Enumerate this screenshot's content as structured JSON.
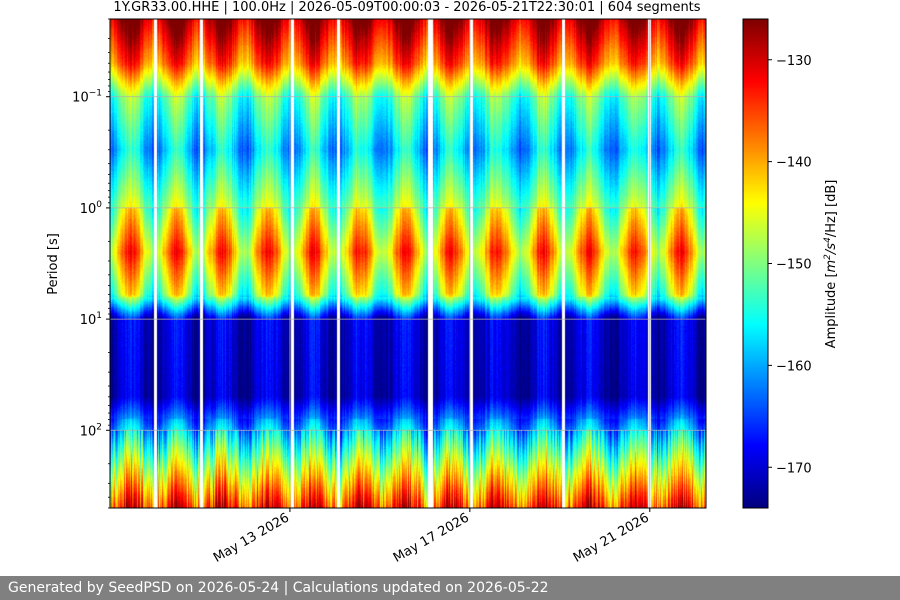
{
  "chart_data": {
    "type": "heatmap",
    "title": "1Y.GR33.00.HHE | 100.0Hz | 2026-05-09T00:00:03 - 2026-05-21T22:30:01 | 604 segments",
    "ylabel": "Period [s]",
    "y_scale": "log",
    "y_inverted": true,
    "ylim": [
      0.02,
      500
    ],
    "y_ticks": [
      {
        "value": 0.1,
        "mantissa": "10",
        "exp": "−1"
      },
      {
        "value": 1,
        "mantissa": "10",
        "exp": "0"
      },
      {
        "value": 10,
        "mantissa": "10",
        "exp": "1"
      },
      {
        "value": 100,
        "mantissa": "10",
        "exp": "2"
      }
    ],
    "x_range": [
      "2026-05-09T00:00:03",
      "2026-05-22T06:00:00"
    ],
    "x_ticks": [
      {
        "date": "2026-05-13",
        "label": "May 13 2026"
      },
      {
        "date": "2026-05-17",
        "label": "May 17 2026"
      },
      {
        "date": "2026-05-21",
        "label": "May 21 2026"
      }
    ],
    "grid": true,
    "colormap": "jet",
    "colorbar": {
      "label_prefix": "Amplitude [",
      "label_math": "m",
      "label_sup1": "2",
      "label_mid": "/s",
      "label_sup2": "4",
      "label_suffix": "/Hz] [dB]",
      "range": [
        -174,
        -126
      ],
      "ticks": [
        -130,
        -140,
        -150,
        -160,
        -170
      ],
      "tick_labels": [
        "−130",
        "−140",
        "−150",
        "−160",
        "−170"
      ]
    },
    "period_profile_db": [
      {
        "period": 0.02,
        "db": -128
      },
      {
        "period": 0.05,
        "db": -137
      },
      {
        "period": 0.1,
        "db": -152
      },
      {
        "period": 0.3,
        "db": -159
      },
      {
        "period": 0.8,
        "db": -151
      },
      {
        "period": 2.5,
        "db": -140
      },
      {
        "period": 6,
        "db": -149
      },
      {
        "period": 10,
        "db": -170
      },
      {
        "period": 50,
        "db": -171
      },
      {
        "period": 100,
        "db": -160
      },
      {
        "period": 250,
        "db": -145
      },
      {
        "period": 500,
        "db": -134
      }
    ],
    "segment_count": 604
  },
  "footer": {
    "text": "Generated by SeedPSD on 2026-05-24 | Calculations updated on 2026-05-22"
  },
  "colors": {
    "background": "#ffffff",
    "footer_bg": "#808080",
    "footer_text": "#ffffff",
    "grid": "#b0b0b0",
    "gap": "#ffffff"
  }
}
